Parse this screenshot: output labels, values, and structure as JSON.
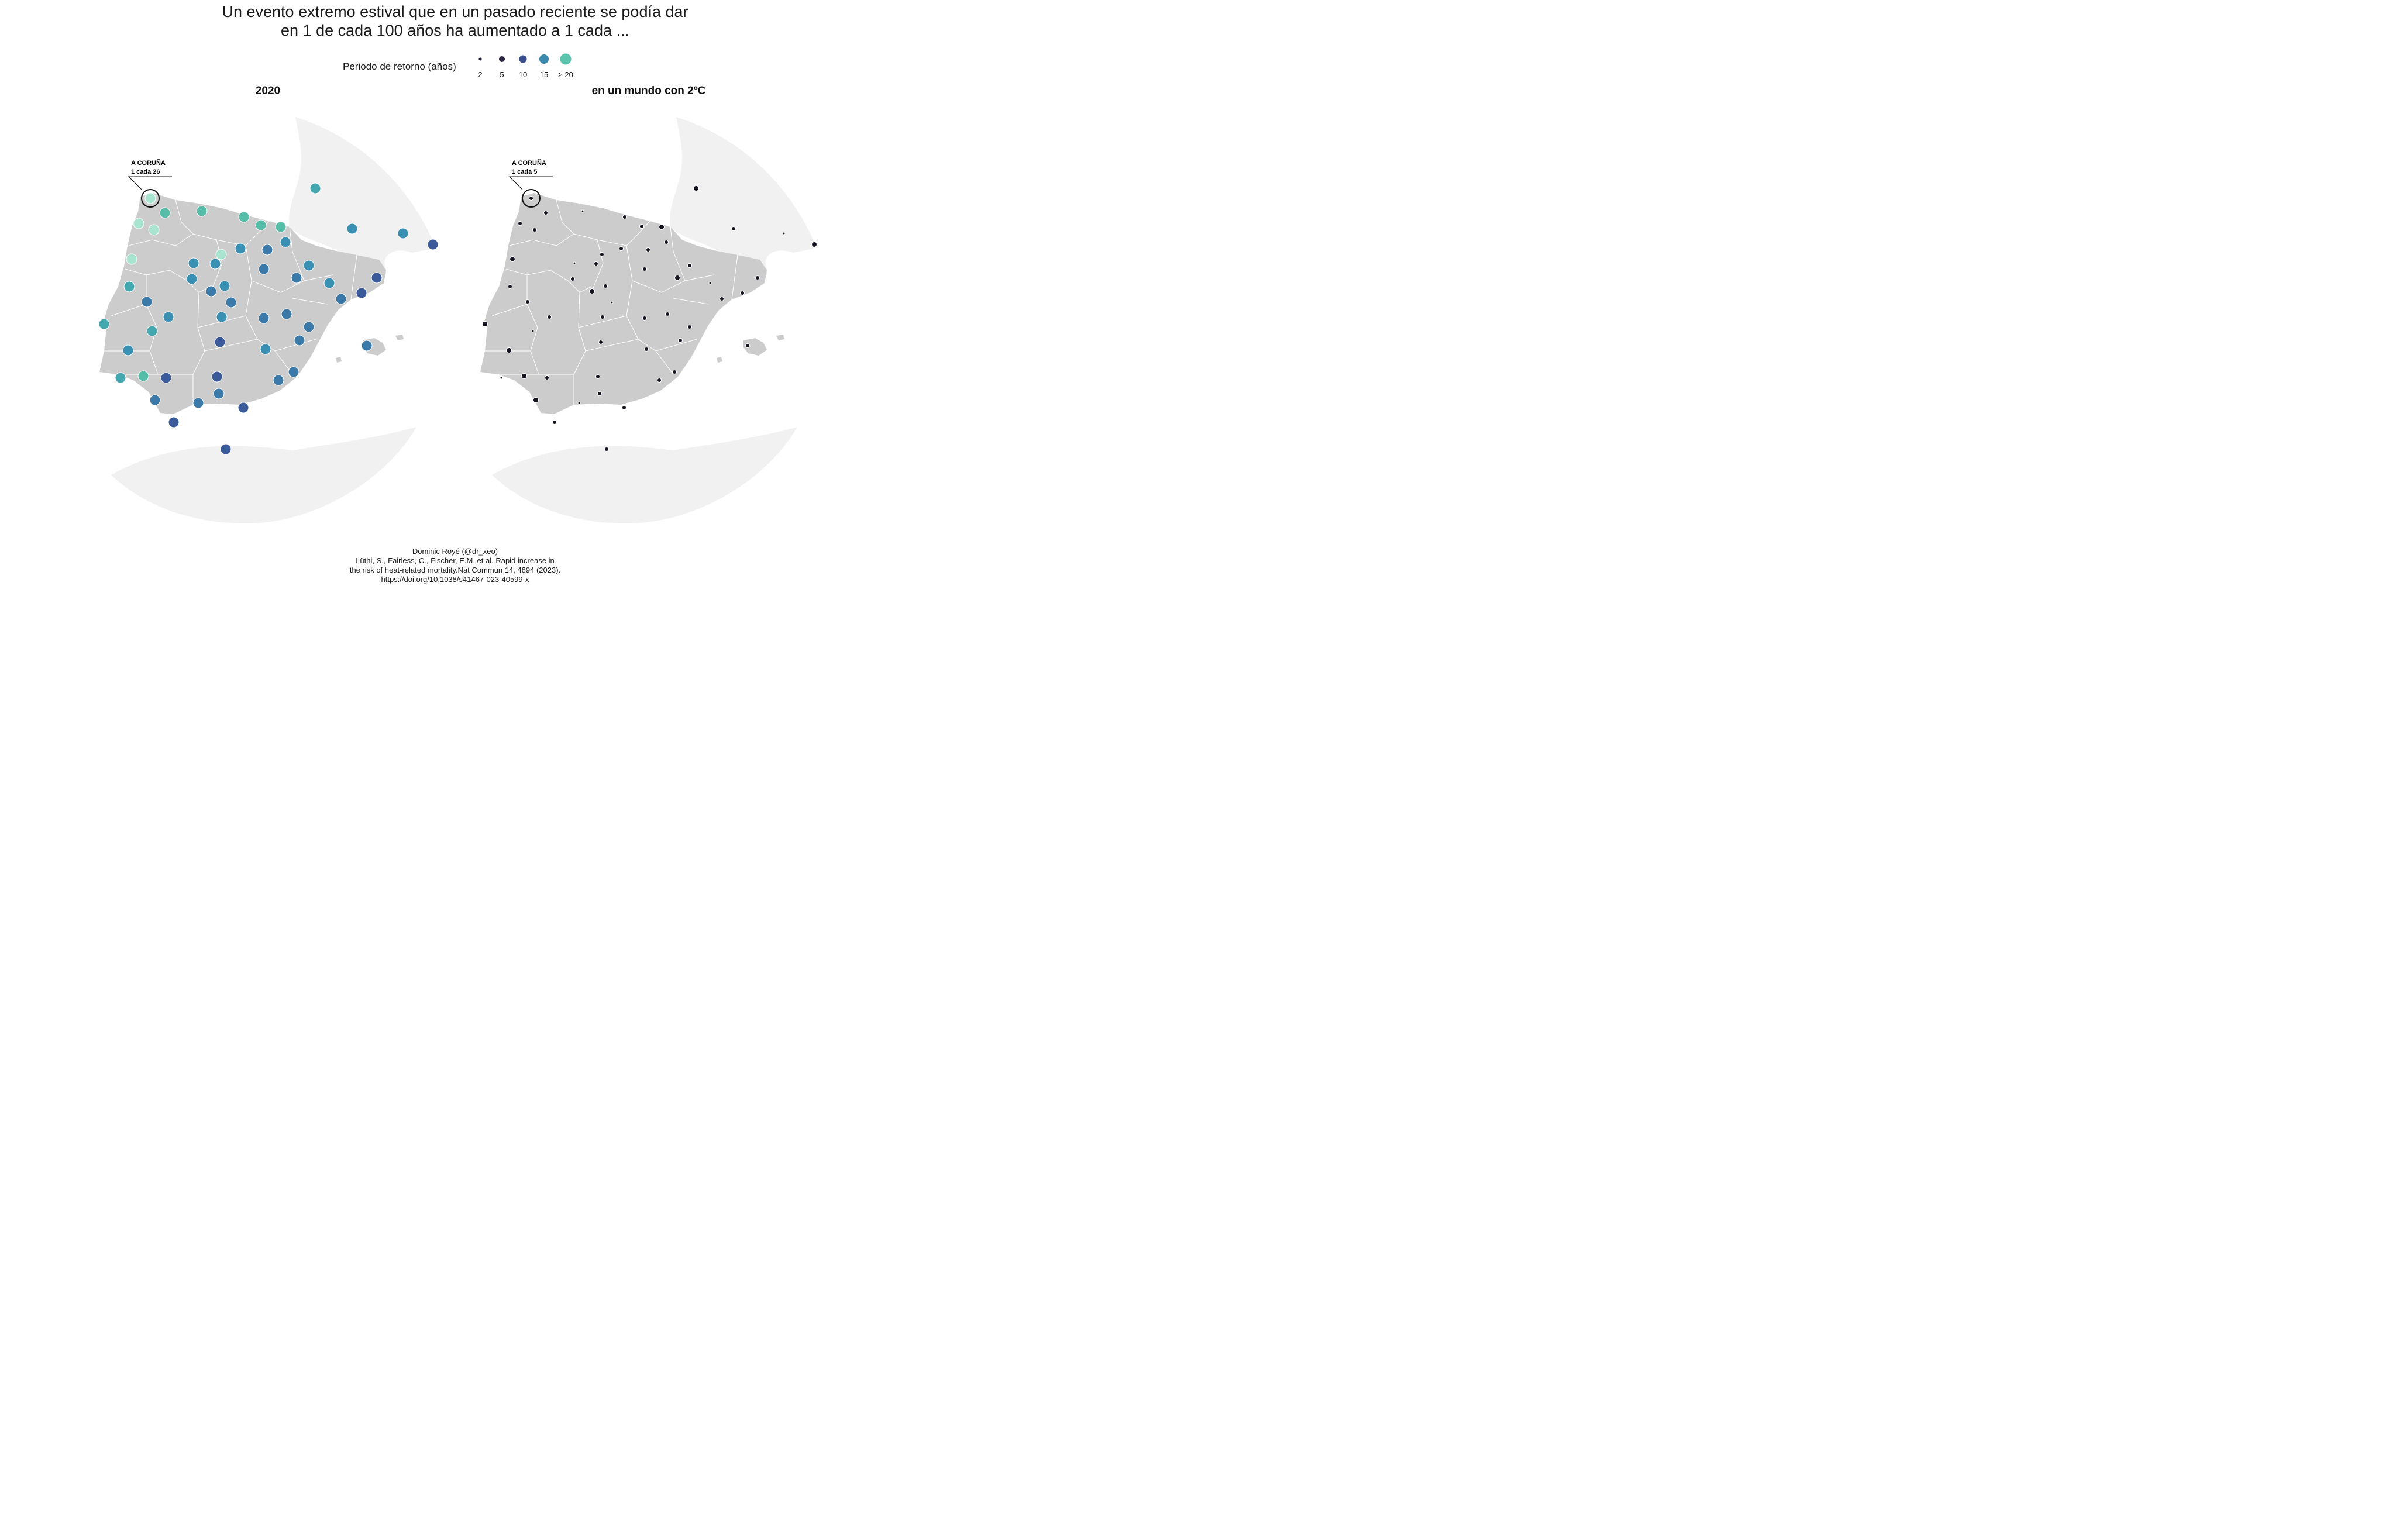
{
  "title": {
    "line1": "Un evento extremo estival que en un pasado reciente se podía dar",
    "line2": "en 1 de cada 100 años ha aumentado a 1 cada ..."
  },
  "legend": {
    "title": "Periodo de retorno (años)",
    "items": [
      {
        "label": "2",
        "color": "#1f1a2e"
      },
      {
        "label": "5",
        "color": "#2e2742"
      },
      {
        "label": "10",
        "color": "#3b4f8f"
      },
      {
        "label": "15",
        "color": "#3a8ab0"
      },
      {
        "label": "> 20",
        "color": "#5cc4ac"
      }
    ]
  },
  "colors": {
    "land": "#cccccc",
    "sea_area": "#f1f1f1",
    "borders": "#ffffff",
    "v10": "#3b5a9a",
    "v13": "#3b79a8",
    "v15": "#3a90b2",
    "v18": "#45a8b0",
    "v21": "#55bda8",
    "v26": "#a8e4cf",
    "dark": "#161320"
  },
  "panels": [
    {
      "title": "2020",
      "annotation": {
        "place": "A CORUÑA",
        "value": "1 cada 26"
      }
    },
    {
      "title": "en un mundo con 2ºC",
      "annotation": {
        "place": "A CORUÑA",
        "value": "1 cada 5"
      }
    }
  ],
  "caption": [
    "Dominic Royé (@dr_xeo)",
    "Lüthi, S., Fairless, C., Fischer, E.M. et al. Rapid increase in",
    "the risk of heat-related mortality.Nat Commun 14, 4894 (2023).",
    "https://doi.org/10.1038/s41467-023-40599-x"
  ]
}
